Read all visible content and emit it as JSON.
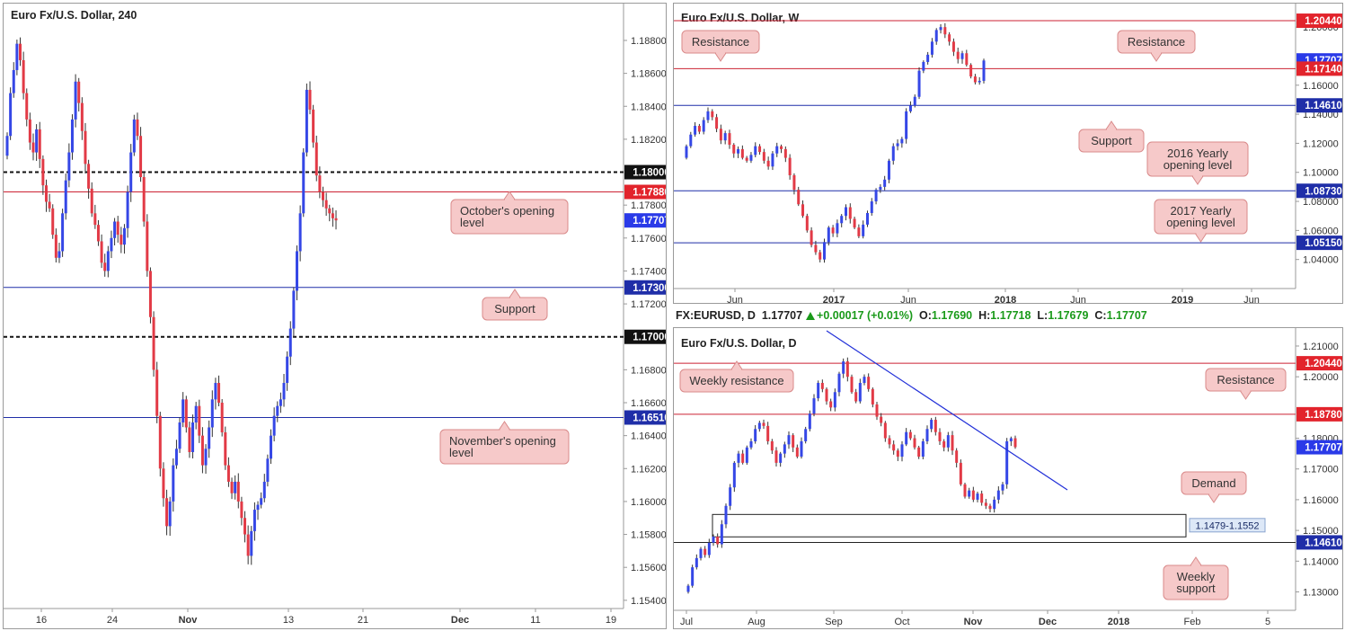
{
  "colors": {
    "up": "#3547e6",
    "down": "#e23a46",
    "red_line": "#cc2233",
    "blue_line": "#1f2ea8",
    "callout_fill": "#f6c9c9",
    "callout_stroke": "#d98a8a"
  },
  "infobar": {
    "symbol": "FX:EURUSD, D",
    "last": "1.17707",
    "change": "+0.00017 (+0.01%)",
    "o_label": "O:",
    "o": "1.17690",
    "h_label": "H:",
    "h": "1.17718",
    "l_label": "L:",
    "l": "1.17679",
    "c_label": "C:",
    "c": "1.17707"
  },
  "chart_data": [
    {
      "type": "candlestick",
      "title": "Euro Fx/U.S. Dollar, 240",
      "ylim": [
        1.1535,
        1.1898
      ],
      "y_ticks": [
        "1.18800",
        "1.18600",
        "1.18400",
        "1.18200",
        "1.17800",
        "1.17600",
        "1.17400",
        "1.17200",
        "1.16800",
        "1.16600",
        "1.16400",
        "1.16200",
        "1.16000",
        "1.15800",
        "1.15600",
        "1.15400"
      ],
      "x_ticks": [
        "16",
        "24",
        "Nov",
        "13",
        "21",
        "Dec",
        "11",
        "19"
      ],
      "levels": [
        {
          "value": 1.18,
          "label": "1.18000",
          "style": "dashed-black"
        },
        {
          "value": 1.1788,
          "label": "1.17880",
          "style": "red"
        },
        {
          "value": 1.17707,
          "label": "1.17707",
          "style": "current"
        },
        {
          "value": 1.173,
          "label": "1.17300",
          "style": "blue"
        },
        {
          "value": 1.17,
          "label": "1.17000",
          "style": "dashed-black"
        },
        {
          "value": 1.1651,
          "label": "1.16510",
          "style": "blue"
        }
      ],
      "callouts": [
        {
          "text": [
            "October's opening",
            "level"
          ]
        },
        {
          "text": [
            "Support"
          ]
        },
        {
          "text": [
            "November's opening",
            "level"
          ]
        }
      ],
      "candles_closes": [
        1.1822,
        1.1848,
        1.1862,
        1.1878,
        1.1868,
        1.1848,
        1.1832,
        1.1818,
        1.1812,
        1.1826,
        1.1808,
        1.1792,
        1.1782,
        1.1778,
        1.1762,
        1.1748,
        1.1752,
        1.1775,
        1.1795,
        1.1812,
        1.1832,
        1.1855,
        1.1842,
        1.1825,
        1.1805,
        1.179,
        1.1775,
        1.1768,
        1.1758,
        1.1745,
        1.174,
        1.1752,
        1.176,
        1.177,
        1.1762,
        1.1756,
        1.1766,
        1.1788,
        1.1812,
        1.1832,
        1.1822,
        1.1797,
        1.177,
        1.174,
        1.1712,
        1.168,
        1.1652,
        1.162,
        1.1602,
        1.1585,
        1.16,
        1.1622,
        1.1632,
        1.1648,
        1.1662,
        1.1645,
        1.163,
        1.1648,
        1.1658,
        1.164,
        1.1622,
        1.1632,
        1.1645,
        1.1662,
        1.1672,
        1.166,
        1.1642,
        1.1622,
        1.1612,
        1.1605,
        1.1612,
        1.16,
        1.159,
        1.158,
        1.1567,
        1.1582,
        1.1595,
        1.1598,
        1.1602,
        1.1612,
        1.1626,
        1.164,
        1.1652,
        1.1658,
        1.1662,
        1.1672,
        1.1688,
        1.1705,
        1.1728,
        1.1752,
        1.1775,
        1.1812,
        1.185,
        1.1838,
        1.1818,
        1.1798,
        1.1788,
        1.1783,
        1.1778,
        1.1775,
        1.1772,
        1.17707
      ],
      "candles_start": 1.181
    },
    {
      "type": "candlestick",
      "title": "Euro Fx/U.S. Dollar, W",
      "ylim": [
        1.02,
        1.21
      ],
      "y_ticks": [
        "1.20000",
        "1.16000",
        "1.14000",
        "1.12000",
        "1.10000",
        "1.08000",
        "1.06000",
        "1.04000"
      ],
      "x_ticks": [
        "Jun",
        "2017",
        "Jun",
        "2018",
        "Jun",
        "2019",
        "Jun"
      ],
      "levels": [
        {
          "value": 1.2044,
          "label": "1.20440",
          "style": "red"
        },
        {
          "value": 1.17707,
          "label": "1.17707",
          "style": "current"
        },
        {
          "value": 1.1714,
          "label": "1.17140",
          "style": "red"
        },
        {
          "value": 1.1461,
          "label": "1.14610",
          "style": "blue"
        },
        {
          "value": 1.0873,
          "label": "1.08730",
          "style": "blue"
        },
        {
          "value": 1.0515,
          "label": "1.05150",
          "style": "blue"
        }
      ],
      "callouts": [
        {
          "text": [
            "Resistance"
          ]
        },
        {
          "text": [
            "Resistance"
          ]
        },
        {
          "text": [
            "Support"
          ]
        },
        {
          "text": [
            "2016 Yearly",
            "opening level"
          ]
        },
        {
          "text": [
            "2017 Yearly",
            "opening level"
          ]
        }
      ],
      "candles_closes": [
        1.118,
        1.126,
        1.132,
        1.128,
        1.136,
        1.142,
        1.138,
        1.13,
        1.122,
        1.127,
        1.119,
        1.113,
        1.116,
        1.11,
        1.108,
        1.112,
        1.118,
        1.114,
        1.108,
        1.104,
        1.113,
        1.118,
        1.116,
        1.11,
        1.098,
        1.088,
        1.078,
        1.07,
        1.06,
        1.05,
        1.045,
        1.04,
        1.052,
        1.062,
        1.058,
        1.065,
        1.07,
        1.076,
        1.068,
        1.062,
        1.056,
        1.064,
        1.072,
        1.08,
        1.088,
        1.09,
        1.095,
        1.108,
        1.118,
        1.12,
        1.123,
        1.142,
        1.146,
        1.152,
        1.17,
        1.176,
        1.181,
        1.19,
        1.198,
        1.2,
        1.195,
        1.19,
        1.183,
        1.178,
        1.182,
        1.174,
        1.166,
        1.162,
        1.163,
        1.177
      ],
      "candles_start": 1.11
    },
    {
      "type": "candlestick",
      "title": "Euro Fx/U.S. Dollar, D",
      "ylim": [
        1.124,
        1.2135
      ],
      "y_ticks": [
        "1.21000",
        "1.20000",
        "1.18000",
        "1.17000",
        "1.16000",
        "1.15000",
        "1.14000",
        "1.13000"
      ],
      "x_ticks": [
        "Jul",
        "Aug",
        "Sep",
        "Oct",
        "Nov",
        "Dec",
        "2018",
        "Feb",
        "5"
      ],
      "levels": [
        {
          "value": 1.2044,
          "label": "1.20440",
          "style": "red"
        },
        {
          "value": 1.1878,
          "label": "1.18780",
          "style": "red"
        },
        {
          "value": 1.17707,
          "label": "1.17707",
          "style": "current"
        },
        {
          "value": 1.1461,
          "label": "1.14610",
          "style": "blue-dark"
        }
      ],
      "demand_zone": {
        "low": 1.1479,
        "high": 1.1552,
        "label": "1.1479-1.1552"
      },
      "callouts": [
        {
          "text": [
            "Weekly resistance"
          ]
        },
        {
          "text": [
            "Resistance"
          ]
        },
        {
          "text": [
            "Demand"
          ]
        },
        {
          "text": [
            "Weekly",
            "support"
          ]
        }
      ],
      "candles_closes": [
        1.132,
        1.138,
        1.141,
        1.144,
        1.142,
        1.146,
        1.148,
        1.1455,
        1.152,
        1.158,
        1.164,
        1.172,
        1.175,
        1.172,
        1.177,
        1.179,
        1.183,
        1.185,
        1.184,
        1.179,
        1.176,
        1.172,
        1.175,
        1.178,
        1.181,
        1.177,
        1.174,
        1.179,
        1.183,
        1.188,
        1.193,
        1.198,
        1.196,
        1.192,
        1.19,
        1.195,
        1.201,
        1.205,
        1.2,
        1.195,
        1.192,
        1.198,
        1.2,
        1.196,
        1.191,
        1.187,
        1.185,
        1.18,
        1.178,
        1.176,
        1.174,
        1.178,
        1.182,
        1.18,
        1.177,
        1.174,
        1.179,
        1.183,
        1.186,
        1.182,
        1.179,
        1.177,
        1.181,
        1.176,
        1.172,
        1.165,
        1.161,
        1.163,
        1.16,
        1.162,
        1.159,
        1.158,
        1.157,
        1.16,
        1.163,
        1.165,
        1.179,
        1.18,
        1.1771
      ],
      "candles_start": 1.13,
      "trendline": true
    }
  ]
}
